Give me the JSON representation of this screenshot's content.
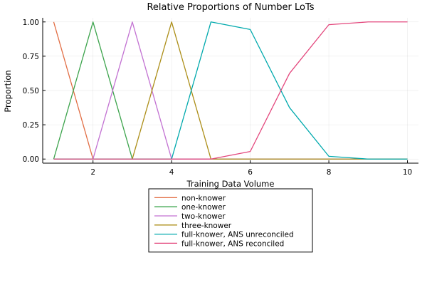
{
  "chart_data": {
    "type": "line",
    "title": "Relative Proportions of Number LoTs",
    "xlabel": "Training Data Volume",
    "ylabel": "Proportion",
    "xlim": [
      0.72,
      10.28
    ],
    "ylim": [
      -0.03,
      1.03
    ],
    "grid": true,
    "legend_position": "bottom-center, below plot",
    "x": [
      1,
      2,
      3,
      4,
      5,
      6,
      7,
      8,
      9,
      10
    ],
    "x_ticks": [
      2,
      4,
      6,
      8,
      10
    ],
    "x_tick_labels": [
      "2",
      "4",
      "6",
      "8",
      "10"
    ],
    "y_ticks": [
      0,
      0.25,
      0.5,
      0.75,
      1.0
    ],
    "y_tick_labels": [
      "0.00",
      "0.25",
      "0.50",
      "0.75",
      "1.00"
    ],
    "series": [
      {
        "name": "non-knower",
        "color": "#e26f46",
        "values": [
          1,
          0,
          0,
          0,
          0,
          0,
          0,
          0,
          0,
          0
        ]
      },
      {
        "name": "one-knower",
        "color": "#3da44d",
        "values": [
          0,
          1,
          0,
          0,
          0,
          0,
          0,
          0,
          0,
          0
        ]
      },
      {
        "name": "two-knower",
        "color": "#c271d2",
        "values": [
          0,
          0,
          1,
          0,
          0,
          0,
          0,
          0,
          0,
          0
        ]
      },
      {
        "name": "three-knower",
        "color": "#ac8e18",
        "values": [
          0,
          0,
          0,
          1,
          0,
          0,
          0,
          0,
          0,
          0
        ]
      },
      {
        "name": "full-knower, ANS unreconciled",
        "color": "#00a9ad",
        "values": [
          0,
          0,
          0,
          0,
          1,
          0.945,
          0.375,
          0.02,
          0,
          0
        ]
      },
      {
        "name": "full-knower, ANS reconciled",
        "color": "#e3467c",
        "values": [
          0,
          0,
          0,
          0,
          0,
          0.055,
          0.625,
          0.98,
          1,
          1
        ]
      }
    ]
  }
}
